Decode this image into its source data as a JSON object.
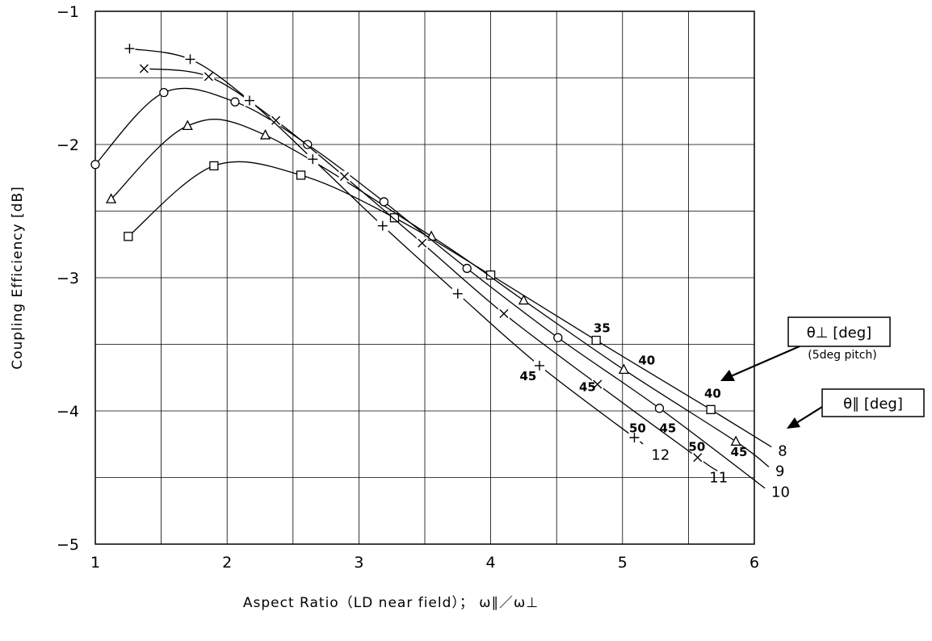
{
  "chart_data": {
    "type": "line",
    "xlabel": "Aspect Ratio（LD near field）； ω∥／ω⊥",
    "ylabel": "Coupling Efficiency [dB]",
    "xlim": [
      1,
      6
    ],
    "ylim": [
      -5,
      -1
    ],
    "xticks": [
      "1",
      "2",
      "3",
      "4",
      "5",
      "6"
    ],
    "yticks": [
      "-1",
      "-2",
      "-3",
      "-4",
      "-5"
    ],
    "grid": true,
    "series": [
      {
        "name": "8",
        "marker": "square",
        "points": [
          [
            1.25,
            -2.69
          ],
          [
            1.9,
            -2.16
          ],
          [
            2.56,
            -2.23
          ],
          [
            3.27,
            -2.55
          ],
          [
            4.0,
            -2.98
          ],
          [
            4.8,
            -3.47
          ],
          [
            5.67,
            -3.99
          ]
        ],
        "extend_to": [
          6.13,
          -4.27
        ]
      },
      {
        "name": "9",
        "marker": "triangle",
        "points": [
          [
            1.12,
            -2.41
          ],
          [
            1.7,
            -1.86
          ],
          [
            2.29,
            -1.93
          ],
          [
            3.55,
            -2.69
          ],
          [
            4.25,
            -3.17
          ],
          [
            5.01,
            -3.69
          ],
          [
            5.86,
            -4.23
          ]
        ],
        "extend_to": [
          6.11,
          -4.42
        ]
      },
      {
        "name": "10",
        "marker": "circle",
        "points": [
          [
            1.0,
            -2.15
          ],
          [
            1.52,
            -1.61
          ],
          [
            2.06,
            -1.68
          ],
          [
            2.61,
            -2.0
          ],
          [
            3.19,
            -2.43
          ],
          [
            3.82,
            -2.93
          ],
          [
            4.51,
            -3.45
          ],
          [
            5.28,
            -3.98
          ]
        ],
        "extend_to": [
          6.08,
          -4.58
        ]
      },
      {
        "name": "11",
        "marker": "x",
        "points": [
          [
            1.37,
            -1.43
          ],
          [
            1.86,
            -1.49
          ],
          [
            2.37,
            -1.82
          ],
          [
            2.89,
            -2.24
          ],
          [
            3.48,
            -2.74
          ],
          [
            4.1,
            -3.27
          ],
          [
            4.81,
            -3.8
          ],
          [
            5.57,
            -4.35
          ]
        ],
        "extend_to": [
          5.72,
          -4.45
        ]
      },
      {
        "name": "12",
        "marker": "plus",
        "points": [
          [
            1.26,
            -1.28
          ],
          [
            1.72,
            -1.36
          ],
          [
            2.17,
            -1.67
          ],
          [
            2.65,
            -2.11
          ],
          [
            3.18,
            -2.61
          ],
          [
            3.75,
            -3.12
          ],
          [
            4.37,
            -3.66
          ],
          [
            5.09,
            -4.2
          ]
        ],
        "extend_to": [
          5.12,
          -4.22
        ]
      }
    ],
    "annotations": [
      {
        "text": "35",
        "x": 4.78,
        "y": -3.41
      },
      {
        "text": "40",
        "x": 5.12,
        "y": -3.65
      },
      {
        "text": "40",
        "x": 5.62,
        "y": -3.9
      },
      {
        "text": "45",
        "x": 5.28,
        "y": -4.16
      },
      {
        "text": "50",
        "x": 5.05,
        "y": -4.16
      },
      {
        "text": "45",
        "x": 4.22,
        "y": -3.77
      },
      {
        "text": "45",
        "x": 4.67,
        "y": -3.85
      },
      {
        "text": "50",
        "x": 5.5,
        "y": -4.3
      },
      {
        "text": "45",
        "x": 5.82,
        "y": -4.34
      }
    ],
    "legend_boxes": [
      {
        "text": "θ⊥ [deg]",
        "note": "(5deg pitch)"
      },
      {
        "text": "θ∥ [deg]"
      }
    ]
  }
}
